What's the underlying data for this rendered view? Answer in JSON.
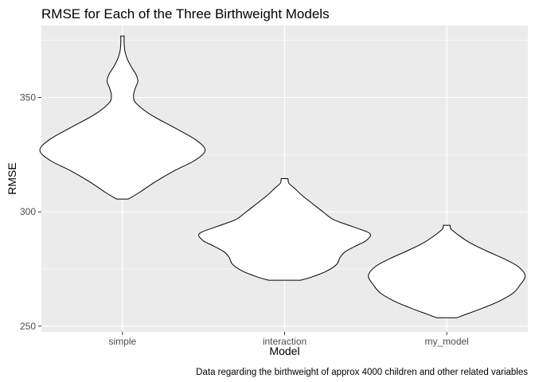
{
  "chart_data": {
    "type": "violin",
    "title": "RMSE for Each of the Three Birthweight Models",
    "xlabel": "Model",
    "ylabel": "RMSE",
    "caption": "Data regarding the birthweight of approx 4000 children and other related variables",
    "categories": [
      "simple",
      "interaction",
      "my_model"
    ],
    "ylim": [
      247.5,
      381.5
    ],
    "yticks": [
      250,
      300,
      350
    ],
    "yminor": [
      275,
      325,
      375
    ],
    "grid": true,
    "legend": "none",
    "colors": {
      "panel": "#ebebeb",
      "grid": "#ffffff",
      "violin_fill": "#ffffff",
      "violin_outline": "#000000"
    },
    "violins": [
      {
        "category": "simple",
        "min": 305.6,
        "max": 376.9,
        "profile": [
          [
            305.6,
            0.07
          ],
          [
            308.5,
            0.2
          ],
          [
            313.0,
            0.38
          ],
          [
            318.0,
            0.61
          ],
          [
            322.5,
            0.85
          ],
          [
            326.9,
            0.97
          ],
          [
            331.5,
            0.86
          ],
          [
            337.0,
            0.6
          ],
          [
            342.5,
            0.33
          ],
          [
            347.5,
            0.16
          ],
          [
            350.7,
            0.13
          ],
          [
            354.0,
            0.15
          ],
          [
            357.0,
            0.18
          ],
          [
            360.0,
            0.16
          ],
          [
            363.0,
            0.11
          ],
          [
            366.5,
            0.06
          ],
          [
            370.0,
            0.03
          ],
          [
            373.5,
            0.02
          ],
          [
            376.9,
            0.02
          ]
        ]
      },
      {
        "category": "interaction",
        "min": 270.1,
        "max": 314.5,
        "profile": [
          [
            270.1,
            0.19
          ],
          [
            271.5,
            0.32
          ],
          [
            274.0,
            0.49
          ],
          [
            277.0,
            0.61
          ],
          [
            280.0,
            0.65
          ],
          [
            282.5,
            0.71
          ],
          [
            285.0,
            0.83
          ],
          [
            287.5,
            0.96
          ],
          [
            290.5,
            1.0
          ],
          [
            293.5,
            0.8
          ],
          [
            296.5,
            0.58
          ],
          [
            300.0,
            0.45
          ],
          [
            303.5,
            0.33
          ],
          [
            307.0,
            0.21
          ],
          [
            310.5,
            0.11
          ],
          [
            312.5,
            0.05
          ],
          [
            314.5,
            0.04
          ]
        ]
      },
      {
        "category": "my_model",
        "min": 253.7,
        "max": 294.1,
        "profile": [
          [
            253.7,
            0.12
          ],
          [
            255.5,
            0.25
          ],
          [
            258.0,
            0.43
          ],
          [
            261.0,
            0.62
          ],
          [
            264.5,
            0.78
          ],
          [
            268.0,
            0.86
          ],
          [
            272.0,
            0.92
          ],
          [
            276.0,
            0.84
          ],
          [
            279.5,
            0.67
          ],
          [
            283.0,
            0.46
          ],
          [
            286.5,
            0.27
          ],
          [
            290.0,
            0.13
          ],
          [
            292.5,
            0.05
          ],
          [
            294.1,
            0.04
          ]
        ]
      }
    ]
  }
}
